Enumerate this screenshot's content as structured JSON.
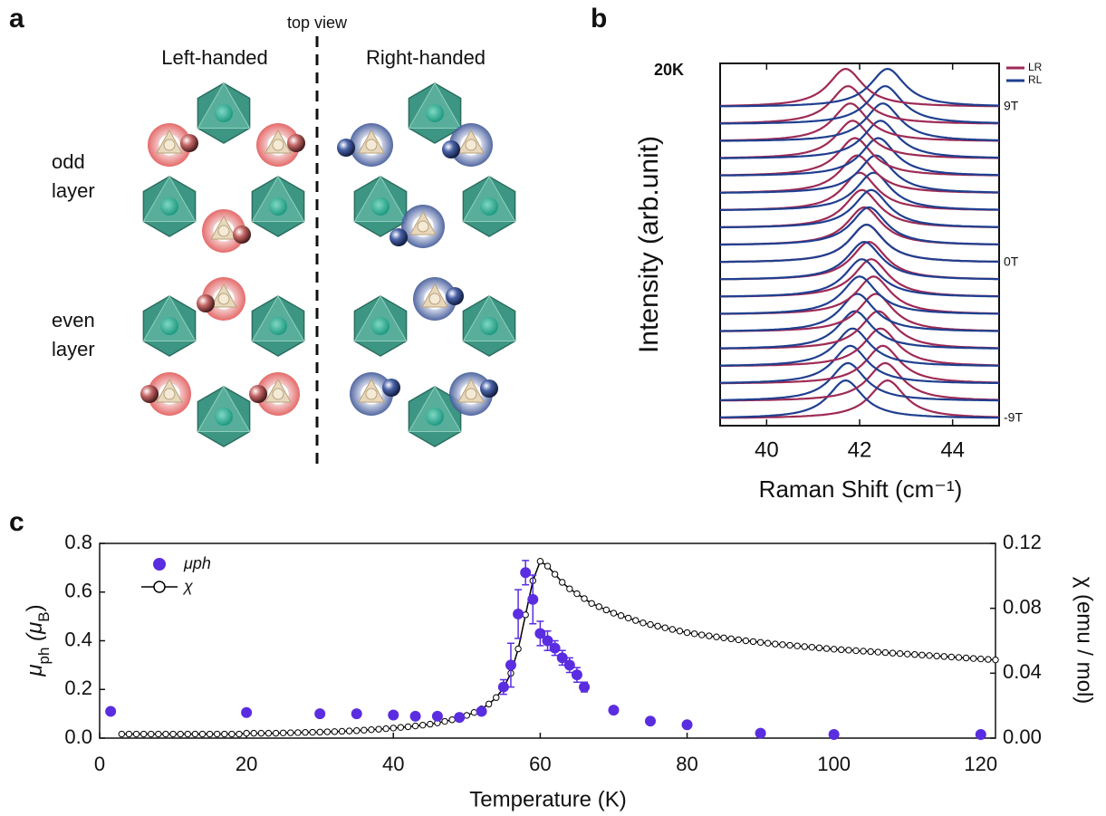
{
  "panel_labels": [
    "a",
    "b",
    "c"
  ],
  "diagram": {
    "top_label": "top view",
    "left_title": "Left-handed",
    "right_title": "Right-handed",
    "odd_label": [
      "odd",
      "layer"
    ],
    "even_label": [
      "even",
      "layer"
    ]
  },
  "chart_data": [
    {
      "type": "waterfall",
      "temperature_label": "20K",
      "x_label": "Raman Shift (cm⁻¹)",
      "y_label": "Intensity (arb.unit)",
      "xlim": [
        39,
        45
      ],
      "xticks": [
        40,
        42,
        44
      ],
      "legend": "upper right",
      "categories": [
        "-9T",
        null,
        null,
        null,
        null,
        null,
        null,
        null,
        null,
        "0T",
        null,
        null,
        null,
        null,
        null,
        null,
        null,
        null,
        "9T"
      ],
      "series": [
        {
          "name": "LR",
          "color": "#9e2a55",
          "values": [
            42.6,
            42.55,
            42.5,
            42.45,
            42.4,
            42.35,
            42.3,
            42.25,
            42.2,
            42.15,
            42.1,
            42.05,
            42.0,
            41.95,
            41.9,
            41.85,
            41.8,
            41.75,
            41.7
          ]
        },
        {
          "name": "RL",
          "color": "#1f3f8f",
          "values": [
            41.7,
            41.75,
            41.8,
            41.85,
            41.9,
            41.95,
            42.0,
            42.05,
            42.1,
            42.15,
            42.2,
            42.25,
            42.3,
            42.35,
            42.4,
            42.45,
            42.5,
            42.55,
            42.6
          ]
        }
      ]
    },
    {
      "type": "scatter",
      "x_label": "Temperature (K)",
      "y_label": [
        "μ",
        "ph",
        " (μ",
        "B",
        ")"
      ],
      "y2_label": "χ (emu / mol)",
      "xlim": [
        0,
        122
      ],
      "xticks": [
        0,
        20,
        40,
        60,
        80,
        100,
        120
      ],
      "ylim": [
        0,
        0.8
      ],
      "yticks": [
        {
          "value": 0,
          "label": "0.0"
        },
        0.2,
        0.4,
        0.6,
        0.8
      ],
      "y2lim": [
        0,
        0.12
      ],
      "y2ticks": [
        {
          "value": 0,
          "label": "0.00"
        },
        {
          "value": 0.04,
          "label": "0.04"
        },
        {
          "value": 0.08,
          "label": "0.08"
        },
        {
          "value": 0.12,
          "label": "0.12"
        }
      ],
      "legend": "upper left",
      "series": [
        {
          "name": "μph",
          "color": "#5a2de0",
          "style": "points",
          "axis": "y",
          "x": [
            1.5,
            20,
            30,
            35,
            40,
            43,
            46,
            49,
            52,
            55,
            56,
            57,
            58,
            59,
            60,
            61,
            62,
            63,
            64,
            65,
            66,
            70,
            75,
            80,
            90,
            100,
            120
          ],
          "values": [
            0.11,
            0.105,
            0.1,
            0.1,
            0.095,
            0.09,
            0.09,
            0.085,
            0.11,
            0.21,
            0.3,
            0.51,
            0.68,
            0.57,
            0.43,
            0.4,
            0.37,
            0.33,
            0.3,
            0.26,
            0.21,
            0.115,
            0.07,
            0.055,
            0.02,
            0.015,
            0.015
          ],
          "errors": [
            null,
            null,
            null,
            null,
            null,
            null,
            null,
            null,
            null,
            0.03,
            0.09,
            0.1,
            0.05,
            0.1,
            0.05,
            0.04,
            0.03,
            0.03,
            0.03,
            0.03,
            0.02,
            null,
            null,
            null,
            null,
            null,
            null
          ]
        },
        {
          "name": "χ",
          "color": "#000000",
          "style": "line",
          "axis": "y2",
          "x": [
            3,
            4,
            5,
            6,
            7,
            8,
            9,
            10,
            11,
            12,
            13,
            14,
            15,
            16,
            17,
            18,
            19,
            20,
            21,
            22,
            23,
            24,
            25,
            26,
            27,
            28,
            29,
            30,
            31,
            32,
            33,
            34,
            35,
            36,
            37,
            38,
            39,
            40,
            41,
            42,
            43,
            44,
            45,
            46,
            47,
            48,
            49,
            50,
            51,
            52,
            53,
            54,
            55,
            56,
            57,
            58,
            59,
            60,
            61,
            62,
            63,
            64,
            65,
            66,
            67,
            68,
            69,
            70,
            71,
            72,
            73,
            74,
            75,
            76,
            77,
            78,
            79,
            80,
            81,
            82,
            83,
            84,
            85,
            86,
            87,
            88,
            89,
            90,
            91,
            92,
            93,
            94,
            95,
            96,
            97,
            98,
            99,
            100,
            101,
            102,
            103,
            104,
            105,
            106,
            107,
            108,
            109,
            110,
            111,
            112,
            113,
            114,
            115,
            116,
            117,
            118,
            119,
            120,
            121,
            122
          ],
          "values": [
            0.0025,
            0.0025,
            0.0025,
            0.0025,
            0.0025,
            0.0025,
            0.0025,
            0.0025,
            0.0025,
            0.0025,
            0.0025,
            0.0025,
            0.0025,
            0.0025,
            0.0025,
            0.0025,
            0.0025,
            0.003,
            0.003,
            0.003,
            0.003,
            0.003,
            0.0032,
            0.0033,
            0.0034,
            0.0035,
            0.0036,
            0.0037,
            0.0039,
            0.004,
            0.0042,
            0.0044,
            0.0046,
            0.0049,
            0.0052,
            0.0055,
            0.0058,
            0.0062,
            0.0066,
            0.007,
            0.0075,
            0.008,
            0.0086,
            0.0094,
            0.0103,
            0.0113,
            0.0125,
            0.014,
            0.0158,
            0.018,
            0.021,
            0.025,
            0.031,
            0.04,
            0.055,
            0.076,
            0.097,
            0.109,
            0.106,
            0.101,
            0.096,
            0.092,
            0.089,
            0.086,
            0.083,
            0.081,
            0.079,
            0.077,
            0.0755,
            0.074,
            0.0725,
            0.071,
            0.07,
            0.069,
            0.068,
            0.067,
            0.066,
            0.065,
            0.0643,
            0.0636,
            0.063,
            0.0624,
            0.0618,
            0.0612,
            0.0606,
            0.06,
            0.0595,
            0.059,
            0.0585,
            0.058,
            0.0576,
            0.0572,
            0.0568,
            0.0564,
            0.056,
            0.0556,
            0.0552,
            0.0548,
            0.0545,
            0.0542,
            0.0539,
            0.0536,
            0.0533,
            0.053,
            0.0527,
            0.0524,
            0.0521,
            0.0518,
            0.0515,
            0.0512,
            0.0509,
            0.0506,
            0.0503,
            0.05,
            0.0497,
            0.0494,
            0.0491,
            0.0488,
            0.0485,
            0.0482
          ]
        }
      ]
    }
  ]
}
